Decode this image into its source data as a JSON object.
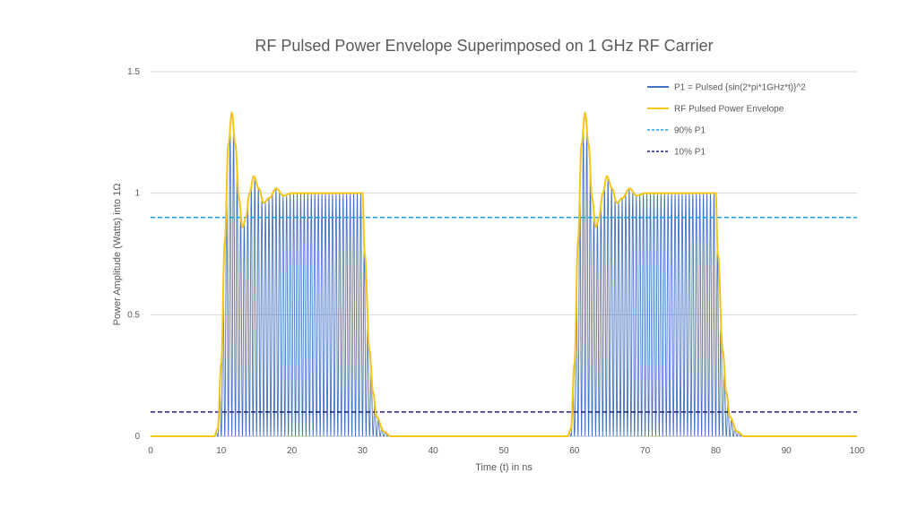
{
  "chart_data": {
    "type": "line",
    "title": "RF Pulsed Power Envelope Superimposed on 1 GHz RF Carrier",
    "xlabel": "Time (t) in ns",
    "ylabel": "Power Amplitude (Watts) into 1Ω",
    "xlim": [
      0,
      100
    ],
    "ylim": [
      0,
      1.5
    ],
    "xticks": [
      "0",
      "10",
      "20",
      "30",
      "40",
      "50",
      "60",
      "70",
      "80",
      "90",
      "100"
    ],
    "yticks": [
      "0",
      "0.5",
      "1",
      "1.5"
    ],
    "grid": "horizontal",
    "legend_position": "top-right",
    "carrier_frequency_ghz": 1,
    "envelope": {
      "t": [
        0,
        9,
        9.5,
        10,
        10.5,
        11,
        11.5,
        12,
        12.5,
        13,
        13.5,
        14,
        14.6,
        15.3,
        16,
        16.8,
        17.8,
        18.8,
        20,
        30,
        30.3,
        31,
        31.5,
        32,
        33,
        34,
        59,
        59.5,
        60,
        60.5,
        61,
        61.5,
        62,
        62.5,
        63,
        63.5,
        64,
        64.6,
        65.3,
        66,
        66.8,
        67.8,
        68.8,
        70,
        80,
        80.3,
        81,
        81.5,
        82,
        83,
        84,
        100
      ],
      "p": [
        0,
        0,
        0.03,
        0.3,
        0.8,
        1.2,
        1.33,
        1.2,
        0.98,
        0.86,
        0.9,
        1.0,
        1.07,
        1.02,
        0.96,
        0.98,
        1.02,
        0.99,
        1.0,
        1.0,
        0.75,
        0.35,
        0.18,
        0.08,
        0.02,
        0,
        0,
        0.03,
        0.3,
        0.8,
        1.2,
        1.33,
        1.2,
        0.98,
        0.86,
        0.9,
        1.0,
        1.07,
        1.02,
        0.96,
        0.98,
        1.02,
        0.99,
        1.0,
        1.0,
        0.75,
        0.35,
        0.18,
        0.08,
        0.02,
        0,
        0
      ]
    },
    "series": [
      {
        "name": "P1 = Pulsed {sin(2*pi*1GHz*t)}^2",
        "color": "#4472c4",
        "style": "solid"
      },
      {
        "name": "RF Pulsed Power Envelope",
        "color": "#f5c518",
        "style": "solid"
      },
      {
        "name": "90% P1",
        "color": "#1ba1e2",
        "style": "dashed",
        "value": 0.9
      },
      {
        "name": "10% P1",
        "color": "#1f1f7a",
        "style": "dashed",
        "value": 0.1
      }
    ]
  }
}
